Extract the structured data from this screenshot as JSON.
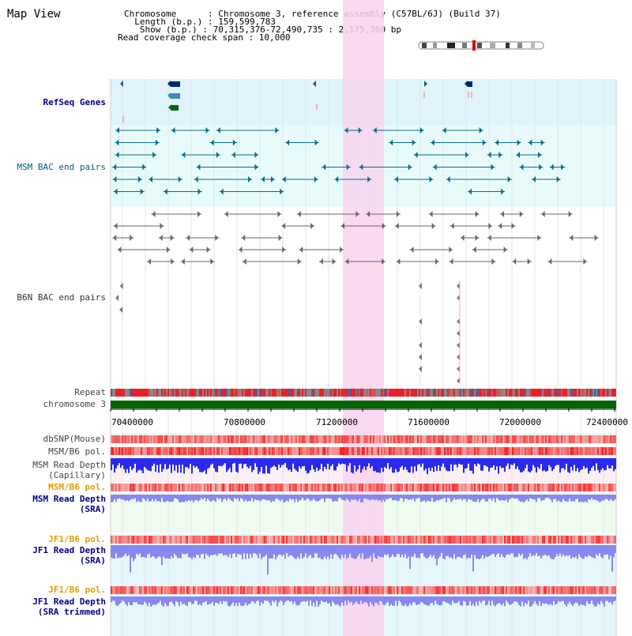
{
  "app_title": "Map View",
  "info": {
    "chromosome": "Chromosome      : Chromosome 3, reference assembly (C57BL/6J) (Build 37)",
    "length": "  Length (b.p.) : 159,599,783",
    "show": "   Show (b.p.) : 70,315,376-72,490,735 : 2,175,360 bp",
    "coverage": "Read coverage check span : 10,000"
  },
  "tracks": {
    "refseq": "RefSeq Genes",
    "msm_bac": "MSM BAC end pairs",
    "b6n_bac": "B6N BAC end pairs",
    "repeat": "Repeat",
    "chromosome": "chromosome 3",
    "dbsnp": "dbSNP(Mouse)",
    "msm_b6_pol_1": "MSM/B6 pol.",
    "msm_depth_cap_1": "MSM Read Depth",
    "msm_depth_cap_2": "(Capillary)",
    "msm_b6_pol_2": "MSM/B6 pol.",
    "msm_depth_sra_1": "MSM Read Depth",
    "msm_depth_sra_2": "(SRA)",
    "jf1_b6_pol_1": "JF1/B6 pol.",
    "jf1_depth_sra_1": "JF1 Read Depth",
    "jf1_depth_sra_2": "(SRA)",
    "jf1_b6_pol_2": "JF1/B6 pol.",
    "jf1_depth_trim_1": "JF1 Read Depth",
    "jf1_depth_trim_2": "(SRA trimmed)"
  },
  "axis_ticks": [
    "70400000",
    "70800000",
    "71200000",
    "71600000",
    "72000000",
    "72400000"
  ],
  "colors": {
    "refseq_bg": "#dff4fb",
    "msm_bg": "#e8fbfb",
    "highlight": "#f8d4ef",
    "chromosome_bar": "#006400",
    "repeat_red": "#e8202a",
    "depth_blue": "#2a2aee",
    "depth_light_blue": "#8888f0"
  }
}
